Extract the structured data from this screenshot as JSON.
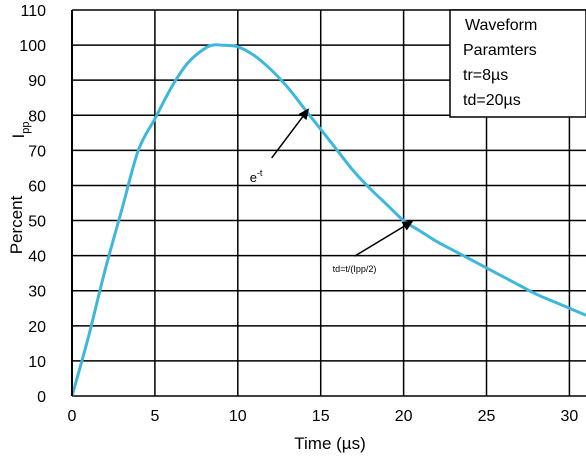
{
  "chart_data": {
    "type": "line",
    "xlabel": "Time (µs)",
    "ylabel": "Percent",
    "ylabel_extra": {
      "base": "I",
      "sub": "pp"
    },
    "xlim": [
      0,
      31
    ],
    "ylim": [
      0,
      110
    ],
    "xticks": [
      0,
      5,
      10,
      15,
      20,
      25,
      30
    ],
    "yticks": [
      0,
      10,
      20,
      30,
      40,
      50,
      60,
      70,
      80,
      90,
      100,
      110
    ],
    "grid": true,
    "line_color": "#3db8dc",
    "series": [
      {
        "x": [
          0,
          1,
          2,
          3,
          4,
          5,
          6,
          7,
          8,
          8.5,
          9,
          10,
          11,
          12,
          13,
          14,
          15,
          16,
          17,
          18,
          19,
          20,
          21,
          22,
          23,
          24,
          25,
          26,
          27,
          28,
          29,
          30,
          31
        ],
        "y": [
          0,
          17,
          36,
          53,
          70,
          79,
          88,
          95,
          99,
          100,
          100,
          99.5,
          97,
          93,
          88,
          82,
          76,
          70,
          64,
          59,
          54.5,
          50,
          47,
          44,
          41.5,
          39,
          36.5,
          34,
          31.5,
          29,
          27,
          25,
          23
        ]
      }
    ],
    "legend_box": {
      "title": "Waveform",
      "line2": "Paramters",
      "line3": "tr=8µs",
      "line4": "td=20µs"
    },
    "annotations": [
      {
        "text_base": "e",
        "text_sup": "-t",
        "target_x": 14.3,
        "target_y": 82,
        "text_x": 11.2,
        "text_y": 65
      },
      {
        "text": "td=t/(Ipp/2)",
        "target_x": 20.6,
        "target_y": 50,
        "text_x": 16.2,
        "text_y": 37
      }
    ]
  }
}
